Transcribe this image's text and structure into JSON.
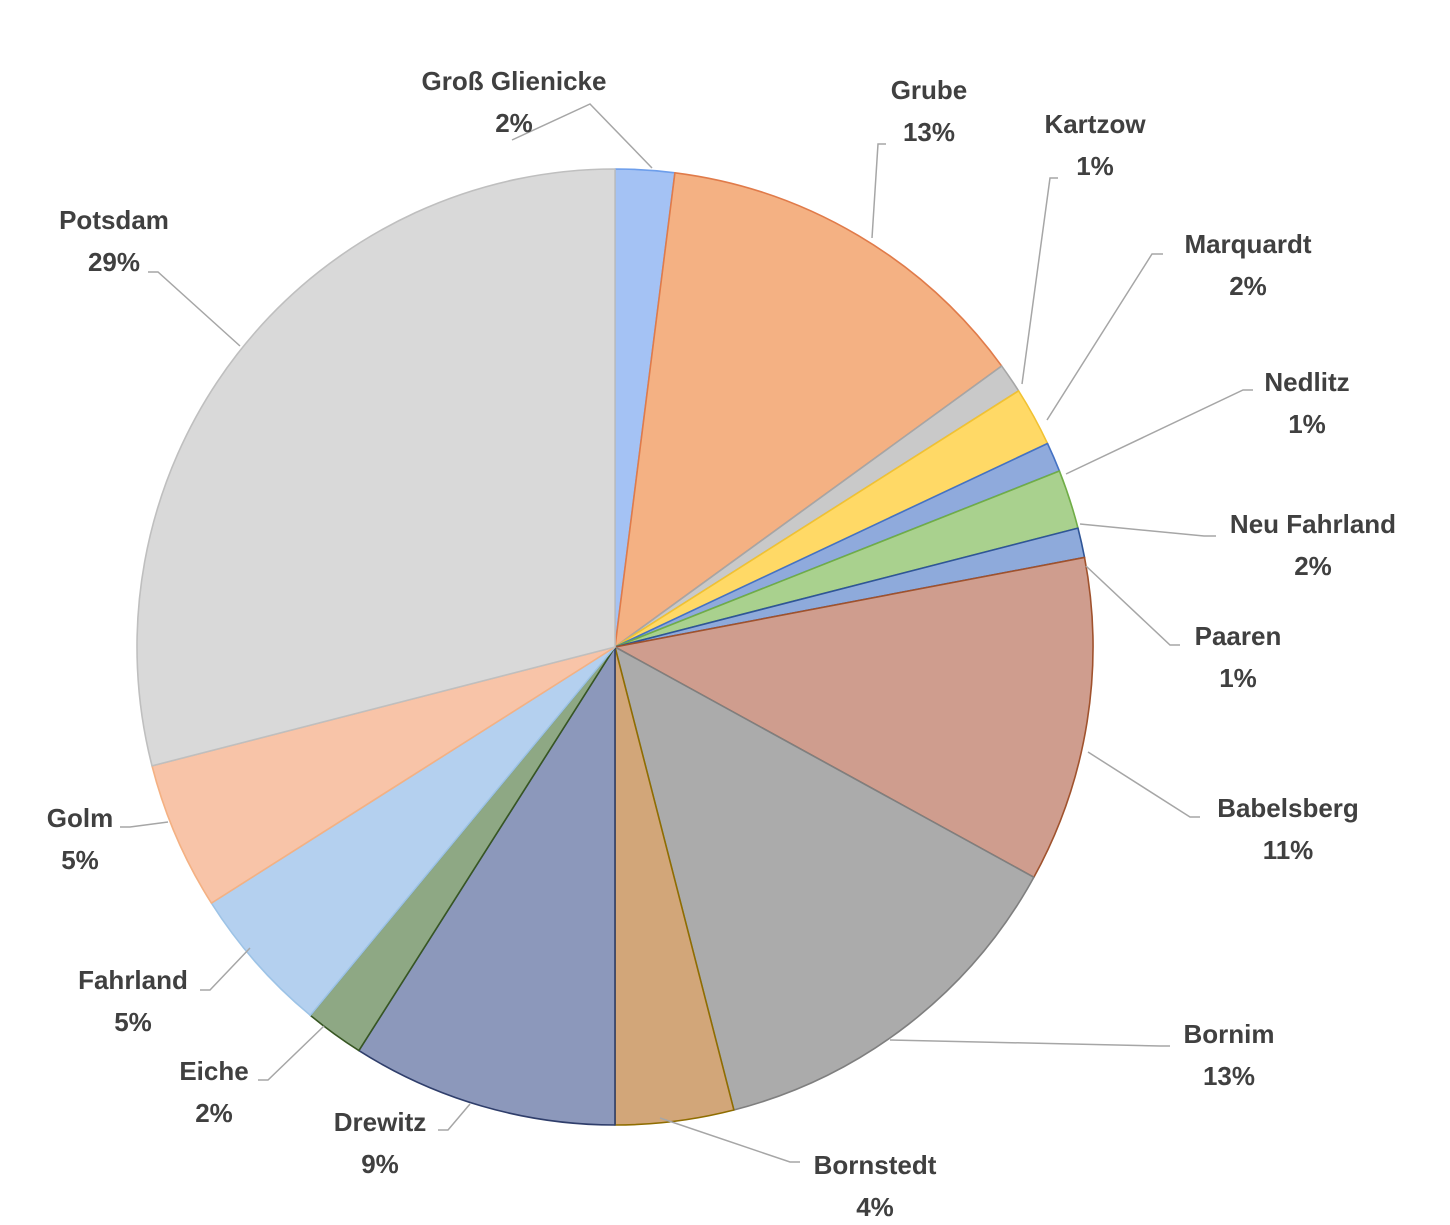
{
  "chart_data": {
    "type": "pie",
    "title": "",
    "start_angle_deg": 0,
    "direction": "clockwise",
    "slices": [
      {
        "name": "Groß Glienicke",
        "value": 2,
        "label": "2%",
        "color": "#a4c2f4",
        "stroke": "#6d9eeb"
      },
      {
        "name": "Grube",
        "value": 13,
        "label": "13%",
        "color": "#f4b183",
        "stroke": "#e07b4a"
      },
      {
        "name": "Kartzow",
        "value": 1,
        "label": "1%",
        "color": "#c9c9c9",
        "stroke": "#a6a6a6"
      },
      {
        "name": "Marquardt",
        "value": 2,
        "label": "2%",
        "color": "#ffd966",
        "stroke": "#f1c232"
      },
      {
        "name": "Nedlitz",
        "value": 1,
        "label": "1%",
        "color": "#8faadc",
        "stroke": "#4472c4"
      },
      {
        "name": "Neu Fahrland",
        "value": 2,
        "label": "2%",
        "color": "#a9d18e",
        "stroke": "#70ad47"
      },
      {
        "name": "Paaren",
        "value": 1,
        "label": "1%",
        "color": "#8eaadb",
        "stroke": "#2f5597"
      },
      {
        "name": "Babelsberg",
        "value": 11,
        "label": "11%",
        "color": "#cf9d8e",
        "stroke": "#a0522d"
      },
      {
        "name": "Bornim",
        "value": 13,
        "label": "13%",
        "color": "#ababab",
        "stroke": "#7f7f7f"
      },
      {
        "name": "Bornstedt",
        "value": 4,
        "label": "4%",
        "color": "#d2a679",
        "stroke": "#8f6d00"
      },
      {
        "name": "Drewitz",
        "value": 9,
        "label": "9%",
        "color": "#8c98bb",
        "stroke": "#2f3e6b"
      },
      {
        "name": "Eiche",
        "value": 2,
        "label": "2%",
        "color": "#8ea884",
        "stroke": "#375623"
      },
      {
        "name": "Fahrland",
        "value": 5,
        "label": "5%",
        "color": "#b4d0ef",
        "stroke": "#9dc3e6"
      },
      {
        "name": "Golm",
        "value": 5,
        "label": "5%",
        "color": "#f8c4a8",
        "stroke": "#f4b183"
      },
      {
        "name": "Potsdam",
        "value": 29,
        "label": "29%",
        "color": "#d9d9d9",
        "stroke": "#bfbfbf"
      }
    ]
  }
}
